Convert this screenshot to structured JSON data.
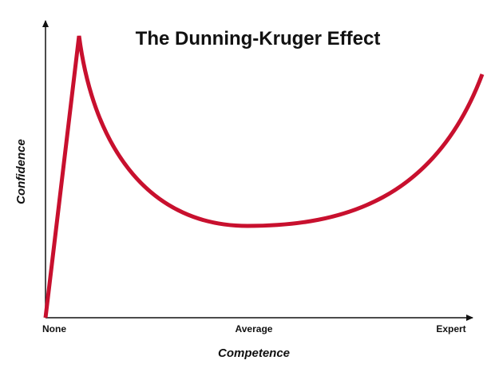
{
  "header": {
    "title": "The Dunning-Kruger Effect"
  },
  "axes": {
    "y_label": "Confidence",
    "x_label": "Competence",
    "x_ticks": [
      "None",
      "Average",
      "Expert"
    ]
  }
}
